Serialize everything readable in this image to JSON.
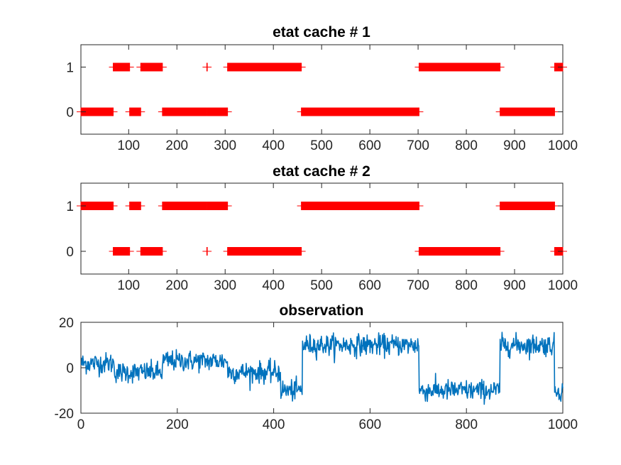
{
  "chart_data": [
    {
      "type": "scatter",
      "title": "etat cache # 1",
      "xlabel": "",
      "ylabel": "",
      "xlim": [
        1,
        1000
      ],
      "ylim": [
        -0.5,
        1.5
      ],
      "xticks": [
        100,
        200,
        300,
        400,
        500,
        600,
        700,
        800,
        900,
        1000
      ],
      "xtick_labels": [
        "100",
        "200",
        "300",
        "400",
        "500",
        "600",
        "700",
        "800",
        "900",
        "1000"
      ],
      "yticks": [
        0,
        1
      ],
      "ytick_labels": [
        "0",
        "1"
      ],
      "marker": "+",
      "color": "#ff0000",
      "segments": [
        {
          "x0": 1,
          "x1": 68,
          "y": 0
        },
        {
          "x0": 68,
          "x1": 102,
          "y": 1
        },
        {
          "x0": 102,
          "x1": 125,
          "y": 0
        },
        {
          "x0": 125,
          "x1": 170,
          "y": 1
        },
        {
          "x0": 170,
          "x1": 262,
          "y": 0
        },
        {
          "x0": 262,
          "x1": 263,
          "y": 1
        },
        {
          "x0": 263,
          "x1": 305,
          "y": 0
        },
        {
          "x0": 305,
          "x1": 458,
          "y": 1
        },
        {
          "x0": 458,
          "x1": 702,
          "y": 0
        },
        {
          "x0": 702,
          "x1": 870,
          "y": 1
        },
        {
          "x0": 870,
          "x1": 983,
          "y": 0
        },
        {
          "x0": 983,
          "x1": 1000,
          "y": 1
        }
      ]
    },
    {
      "type": "scatter",
      "title": "etat cache # 2",
      "xlabel": "",
      "ylabel": "",
      "xlim": [
        1,
        1000
      ],
      "ylim": [
        -0.5,
        1.5
      ],
      "xticks": [
        100,
        200,
        300,
        400,
        500,
        600,
        700,
        800,
        900,
        1000
      ],
      "xtick_labels": [
        "100",
        "200",
        "300",
        "400",
        "500",
        "600",
        "700",
        "800",
        "900",
        "1000"
      ],
      "yticks": [
        0,
        1
      ],
      "ytick_labels": [
        "0",
        "1"
      ],
      "marker": "+",
      "color": "#ff0000",
      "segments": [
        {
          "x0": 1,
          "x1": 68,
          "y": 1
        },
        {
          "x0": 68,
          "x1": 102,
          "y": 0
        },
        {
          "x0": 102,
          "x1": 125,
          "y": 1
        },
        {
          "x0": 125,
          "x1": 170,
          "y": 0
        },
        {
          "x0": 170,
          "x1": 262,
          "y": 1
        },
        {
          "x0": 262,
          "x1": 263,
          "y": 0
        },
        {
          "x0": 263,
          "x1": 305,
          "y": 1
        },
        {
          "x0": 305,
          "x1": 458,
          "y": 0
        },
        {
          "x0": 458,
          "x1": 702,
          "y": 1
        },
        {
          "x0": 702,
          "x1": 870,
          "y": 0
        },
        {
          "x0": 870,
          "x1": 983,
          "y": 1
        },
        {
          "x0": 983,
          "x1": 1000,
          "y": 0
        }
      ]
    },
    {
      "type": "line",
      "title": "observation",
      "xlabel": "",
      "ylabel": "",
      "xlim": [
        0,
        1000
      ],
      "ylim": [
        -20,
        20
      ],
      "xticks": [
        0,
        200,
        400,
        600,
        800,
        1000
      ],
      "xtick_labels": [
        "0",
        "200",
        "400",
        "600",
        "800",
        "1000"
      ],
      "yticks": [
        -20,
        0,
        20
      ],
      "ytick_labels": [
        "-20",
        "0",
        "20"
      ],
      "color": "#0072bd",
      "noise_std": 2.3,
      "mean_levels": [
        {
          "x0": 0,
          "x1": 70,
          "mean": 2
        },
        {
          "x0": 70,
          "x1": 170,
          "mean": -2
        },
        {
          "x0": 170,
          "x1": 305,
          "mean": 3
        },
        {
          "x0": 305,
          "x1": 415,
          "mean": -2
        },
        {
          "x0": 415,
          "x1": 460,
          "mean": -10
        },
        {
          "x0": 460,
          "x1": 702,
          "mean": 10
        },
        {
          "x0": 702,
          "x1": 870,
          "mean": -10
        },
        {
          "x0": 870,
          "x1": 983,
          "mean": 10
        },
        {
          "x0": 983,
          "x1": 1000,
          "mean": -10
        }
      ]
    }
  ]
}
